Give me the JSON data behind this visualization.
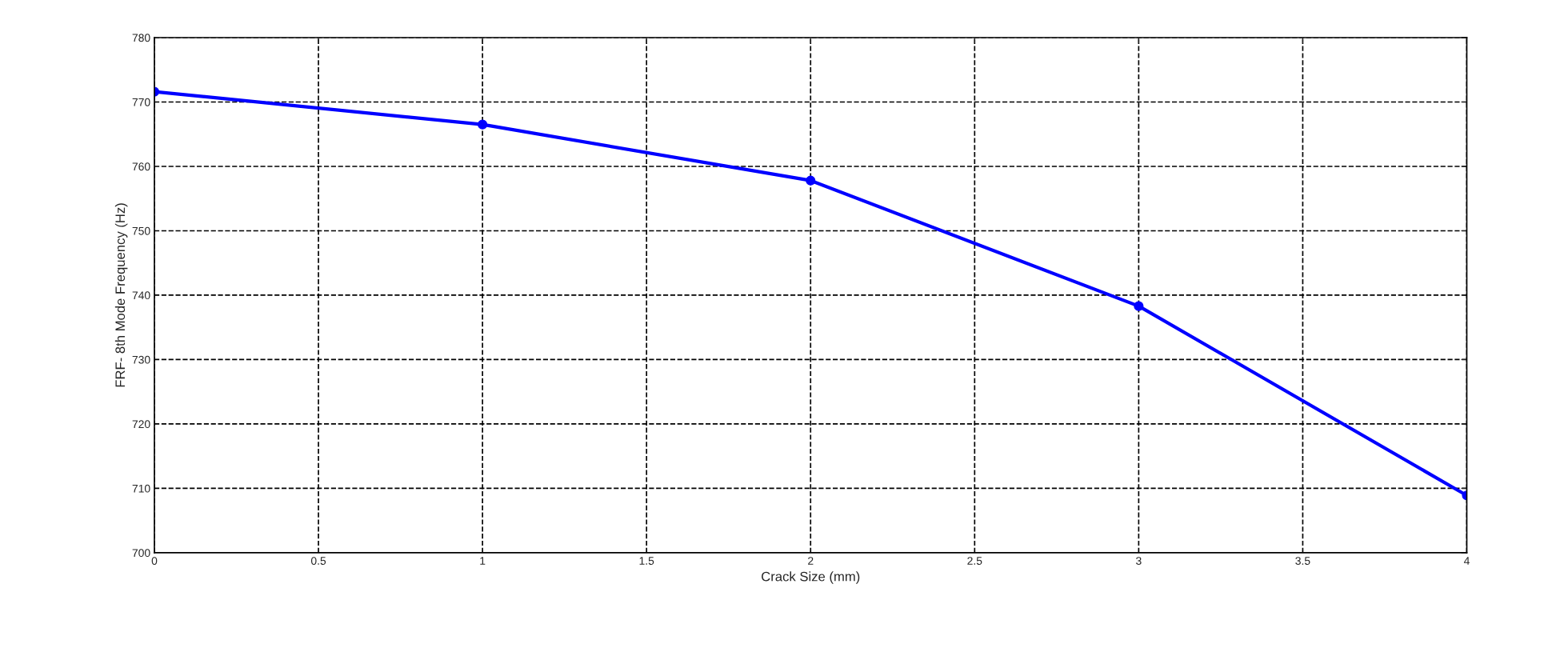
{
  "chart_data": {
    "type": "line",
    "xlabel": "Crack Size (mm)",
    "ylabel": "FRF- 8th Mode Frequency (Hz)",
    "x": [
      0,
      1,
      2,
      3,
      4
    ],
    "series": [
      {
        "color": "#0000ff",
        "values": [
          771.6,
          766.5,
          757.8,
          738.3,
          708.9
        ]
      }
    ],
    "xlim": [
      0,
      4
    ],
    "xticks": [
      0,
      0.5,
      1,
      1.5,
      2,
      2.5,
      3,
      3.5,
      4
    ],
    "ylim": [
      700,
      780
    ],
    "yticks": [
      700,
      710,
      720,
      730,
      740,
      750,
      760,
      770,
      780
    ],
    "grid": true,
    "marker": "circle",
    "line_style": "solid"
  }
}
